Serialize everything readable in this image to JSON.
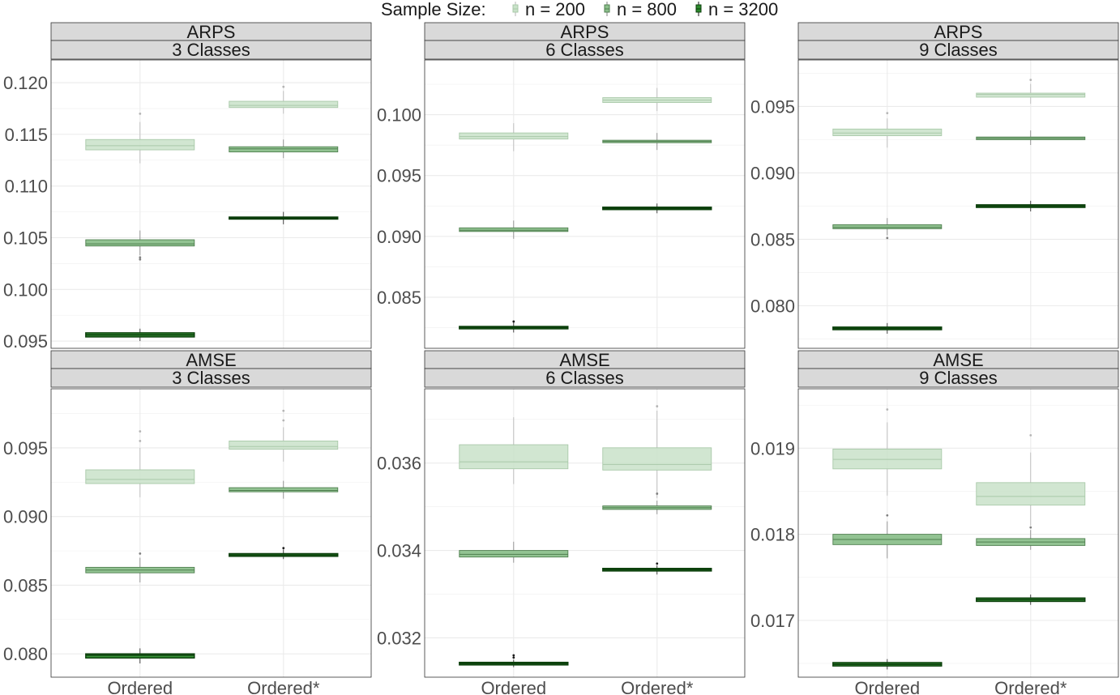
{
  "chart_data": {
    "type": "boxplot",
    "legend": {
      "title": "Sample Size:",
      "placement": "top",
      "entries": [
        "n = 200",
        "n = 800",
        "n = 3200"
      ]
    },
    "colors": {
      "n = 200": "#c9e2c9",
      "n = 800": "#8cc08c",
      "n = 3200": "#2e8b2e",
      "dark_outline": "#0a3d0a",
      "strip_fill": "#d9d9d9"
    },
    "categories": [
      "Ordered",
      "Ordered*"
    ],
    "panels": [
      {
        "metric": "ARPS",
        "classes": "3 Classes",
        "ylim": [
          0.0943,
          0.1222
        ],
        "ticks": [
          "0.095",
          "0.100",
          "0.105",
          "0.110",
          "0.115",
          "0.120"
        ],
        "tick_values": [
          0.095,
          0.1,
          0.105,
          0.11,
          0.115,
          0.12
        ],
        "series": [
          {
            "name": "n = 200",
            "boxes": [
              {
                "q1": 0.1135,
                "med": 0.1139,
                "q3": 0.1145,
                "lo": 0.1122,
                "hi": 0.1162,
                "outliers": [
                  0.117
                ]
              },
              {
                "q1": 0.1176,
                "med": 0.1178,
                "q3": 0.1182,
                "lo": 0.117,
                "hi": 0.1192,
                "outliers": [
                  0.1196
                ]
              }
            ]
          },
          {
            "name": "n = 800",
            "boxes": [
              {
                "q1": 0.1042,
                "med": 0.1044,
                "q3": 0.1048,
                "lo": 0.1033,
                "hi": 0.1057,
                "outliers": [
                  0.1029,
                  0.1031
                ]
              },
              {
                "q1": 0.1133,
                "med": 0.1136,
                "q3": 0.1138,
                "lo": 0.1127,
                "hi": 0.1145,
                "outliers": []
              }
            ]
          },
          {
            "name": "n = 3200",
            "boxes": [
              {
                "q1": 0.0954,
                "med": 0.0956,
                "q3": 0.0958,
                "lo": 0.095,
                "hi": 0.0962,
                "outliers": []
              },
              {
                "q1": 0.1068,
                "med": 0.1069,
                "q3": 0.107,
                "lo": 0.1063,
                "hi": 0.1075,
                "outliers": []
              }
            ]
          }
        ]
      },
      {
        "metric": "ARPS",
        "classes": "6 Classes",
        "ylim": [
          0.0808,
          0.1045
        ],
        "ticks": [
          "0.085",
          "0.090",
          "0.095",
          "0.100"
        ],
        "tick_values": [
          0.085,
          0.09,
          0.095,
          0.1
        ],
        "series": [
          {
            "name": "n = 200",
            "boxes": [
              {
                "q1": 0.098,
                "med": 0.0982,
                "q3": 0.0985,
                "lo": 0.097,
                "hi": 0.0993,
                "outliers": []
              },
              {
                "q1": 0.101,
                "med": 0.1012,
                "q3": 0.1014,
                "lo": 0.1003,
                "hi": 0.1022,
                "outliers": []
              }
            ]
          },
          {
            "name": "n = 800",
            "boxes": [
              {
                "q1": 0.0904,
                "med": 0.0905,
                "q3": 0.0907,
                "lo": 0.0898,
                "hi": 0.0913,
                "outliers": []
              },
              {
                "q1": 0.0977,
                "med": 0.0978,
                "q3": 0.0979,
                "lo": 0.0971,
                "hi": 0.0985,
                "outliers": []
              }
            ]
          },
          {
            "name": "n = 3200",
            "boxes": [
              {
                "q1": 0.0824,
                "med": 0.0825,
                "q3": 0.0826,
                "lo": 0.0821,
                "hi": 0.0829,
                "outliers": [
                  0.083
                ]
              },
              {
                "q1": 0.0922,
                "med": 0.0923,
                "q3": 0.0924,
                "lo": 0.0919,
                "hi": 0.0927,
                "outliers": []
              }
            ]
          }
        ]
      },
      {
        "metric": "ARPS",
        "classes": "9 Classes",
        "ylim": [
          0.0768,
          0.0985
        ],
        "ticks": [
          "0.080",
          "0.085",
          "0.090",
          "0.095"
        ],
        "tick_values": [
          0.08,
          0.085,
          0.09,
          0.095
        ],
        "series": [
          {
            "name": "n = 200",
            "boxes": [
              {
                "q1": 0.0928,
                "med": 0.093,
                "q3": 0.0933,
                "lo": 0.0919,
                "hi": 0.0941,
                "outliers": [
                  0.0945
                ]
              },
              {
                "q1": 0.0957,
                "med": 0.0959,
                "q3": 0.096,
                "lo": 0.0952,
                "hi": 0.0967,
                "outliers": [
                  0.097
                ]
              }
            ]
          },
          {
            "name": "n = 800",
            "boxes": [
              {
                "q1": 0.0858,
                "med": 0.0859,
                "q3": 0.0861,
                "lo": 0.0853,
                "hi": 0.0866,
                "outliers": [
                  0.0851
                ]
              },
              {
                "q1": 0.0925,
                "med": 0.0926,
                "q3": 0.0927,
                "lo": 0.0921,
                "hi": 0.0932,
                "outliers": []
              }
            ]
          },
          {
            "name": "n = 3200",
            "boxes": [
              {
                "q1": 0.0782,
                "med": 0.0783,
                "q3": 0.0784,
                "lo": 0.0779,
                "hi": 0.0787,
                "outliers": []
              },
              {
                "q1": 0.0874,
                "med": 0.0875,
                "q3": 0.0876,
                "lo": 0.0871,
                "hi": 0.0879,
                "outliers": []
              }
            ]
          }
        ]
      },
      {
        "metric": "AMSE",
        "classes": "3 Classes",
        "ylim": [
          0.0783,
          0.0993
        ],
        "ticks": [
          "0.080",
          "0.085",
          "0.090",
          "0.095"
        ],
        "tick_values": [
          0.08,
          0.085,
          0.09,
          0.095
        ],
        "series": [
          {
            "name": "n = 200",
            "boxes": [
              {
                "q1": 0.0924,
                "med": 0.0927,
                "q3": 0.0934,
                "lo": 0.0914,
                "hi": 0.095,
                "outliers": [
                  0.0955,
                  0.0962
                ]
              },
              {
                "q1": 0.0949,
                "med": 0.0951,
                "q3": 0.0955,
                "lo": 0.094,
                "hi": 0.0965,
                "outliers": [
                  0.097,
                  0.0977
                ]
              }
            ]
          },
          {
            "name": "n = 800",
            "boxes": [
              {
                "q1": 0.0859,
                "med": 0.0861,
                "q3": 0.0863,
                "lo": 0.0852,
                "hi": 0.087,
                "outliers": [
                  0.0873
                ]
              },
              {
                "q1": 0.0918,
                "med": 0.0919,
                "q3": 0.0921,
                "lo": 0.0913,
                "hi": 0.0926,
                "outliers": []
              }
            ]
          },
          {
            "name": "n = 3200",
            "boxes": [
              {
                "q1": 0.0797,
                "med": 0.0799,
                "q3": 0.08,
                "lo": 0.0793,
                "hi": 0.0804,
                "outliers": []
              },
              {
                "q1": 0.0871,
                "med": 0.0872,
                "q3": 0.0873,
                "lo": 0.0869,
                "hi": 0.0876,
                "outliers": [
                  0.0877
                ]
              }
            ]
          }
        ]
      },
      {
        "metric": "AMSE",
        "classes": "6 Classes",
        "ylim": [
          0.0311,
          0.0377
        ],
        "ticks": [
          "0.032",
          "0.034",
          "0.036"
        ],
        "tick_values": [
          0.032,
          0.034,
          0.036
        ],
        "series": [
          {
            "name": "n = 200",
            "boxes": [
              {
                "q1": 0.03587,
                "med": 0.03603,
                "q3": 0.03642,
                "lo": 0.03552,
                "hi": 0.03705,
                "outliers": []
              },
              {
                "q1": 0.03584,
                "med": 0.03597,
                "q3": 0.03635,
                "lo": 0.0352,
                "hi": 0.0372,
                "outliers": [
                  0.0373
                ]
              }
            ]
          },
          {
            "name": "n = 800",
            "boxes": [
              {
                "q1": 0.03385,
                "med": 0.03391,
                "q3": 0.034,
                "lo": 0.03372,
                "hi": 0.0342,
                "outliers": []
              },
              {
                "q1": 0.03494,
                "med": 0.03498,
                "q3": 0.03502,
                "lo": 0.03483,
                "hi": 0.03514,
                "outliers": [
                  0.0353
                ]
              }
            ]
          },
          {
            "name": "n = 3200",
            "boxes": [
              {
                "q1": 0.03138,
                "med": 0.03141,
                "q3": 0.03144,
                "lo": 0.03133,
                "hi": 0.0315,
                "outliers": [
                  0.03155,
                  0.0316
                ]
              },
              {
                "q1": 0.03353,
                "med": 0.03356,
                "q3": 0.03359,
                "lo": 0.03345,
                "hi": 0.03366,
                "outliers": [
                  0.0337
                ]
              }
            ]
          }
        ]
      },
      {
        "metric": "AMSE",
        "classes": "9 Classes",
        "ylim": [
          0.01634,
          0.01969
        ],
        "ticks": [
          "0.017",
          "0.018",
          "0.019"
        ],
        "tick_values": [
          0.017,
          0.018,
          0.019
        ],
        "series": [
          {
            "name": "n = 200",
            "boxes": [
              {
                "q1": 0.01876,
                "med": 0.01887,
                "q3": 0.01899,
                "lo": 0.01845,
                "hi": 0.0193,
                "outliers": [
                  0.01945
                ]
              },
              {
                "q1": 0.01834,
                "med": 0.01844,
                "q3": 0.0186,
                "lo": 0.0181,
                "hi": 0.01895,
                "outliers": [
                  0.01915
                ]
              }
            ]
          },
          {
            "name": "n = 800",
            "boxes": [
              {
                "q1": 0.01788,
                "med": 0.01794,
                "q3": 0.018,
                "lo": 0.01772,
                "hi": 0.01815,
                "outliers": [
                  0.01822
                ]
              },
              {
                "q1": 0.01787,
                "med": 0.01791,
                "q3": 0.01795,
                "lo": 0.01782,
                "hi": 0.01805,
                "outliers": [
                  0.01808
                ]
              }
            ]
          },
          {
            "name": "n = 3200",
            "boxes": [
              {
                "q1": 0.01647,
                "med": 0.01649,
                "q3": 0.01651,
                "lo": 0.01643,
                "hi": 0.01655,
                "outliers": []
              },
              {
                "q1": 0.01722,
                "med": 0.01724,
                "q3": 0.01726,
                "lo": 0.01718,
                "hi": 0.0173,
                "outliers": []
              }
            ]
          }
        ]
      }
    ],
    "grid": true
  }
}
